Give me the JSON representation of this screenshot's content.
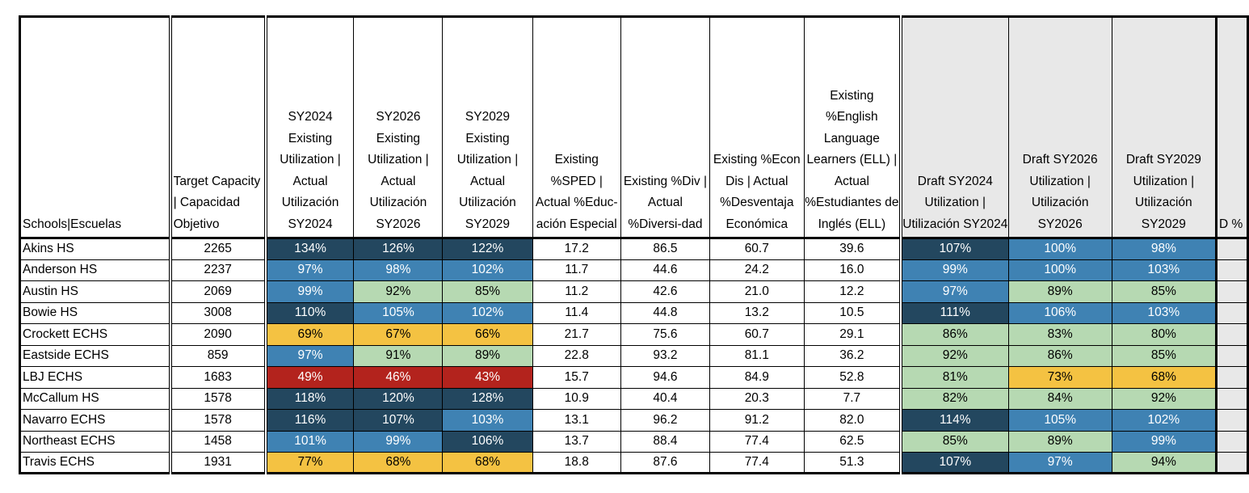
{
  "colors": {
    "dark": "#23475f",
    "blue": "#3f82b3",
    "green": "#b6d9b2",
    "yellow": "#f4c242",
    "red": "#b3231d",
    "draft_header_bg": "#e8e8e8"
  },
  "headers": {
    "school": "Schools|Escuelas",
    "target_capacity": "Target Capacity | Capacidad Objetivo",
    "sy2024_existing": "SY2024 Existing Utilization | Actual Utilización SY2024",
    "sy2026_existing": "SY2026 Existing Utilization | Actual Utilización SY2026",
    "sy2029_existing": "SY2029 Existing Utilization | Actual Utilización SY2029",
    "sped": "Existing %SPED | Actual %Educ-ación Especial",
    "div": "Existing %Div | Actual %Diversi-dad",
    "econ": "Existing %Econ Dis | Actual %Desventaja Económica",
    "ell": "Existing %English Language Learners (ELL) | Actual %Estudiantes de Inglés (ELL)",
    "draft_sy2024": "Draft SY2024 Utilization | Utilización SY2024",
    "draft_sy2026": "Draft SY2026 Utilization | Utilización SY2026",
    "draft_sy2029": "Draft SY2029 Utilization | Utilización SY2029",
    "cut_col": "D %"
  },
  "rows": [
    {
      "school": "Akins HS",
      "capacity": "2265",
      "e24": "134%",
      "e24c": "dark",
      "e26": "126%",
      "e26c": "dark",
      "e29": "122%",
      "e29c": "dark",
      "sped": "17.2",
      "div": "86.5",
      "econ": "60.7",
      "ell": "39.6",
      "d24": "107%",
      "d24c": "dark",
      "d26": "100%",
      "d26c": "blue",
      "d29": "98%",
      "d29c": "blue"
    },
    {
      "school": "Anderson HS",
      "capacity": "2237",
      "e24": "97%",
      "e24c": "blue",
      "e26": "98%",
      "e26c": "blue",
      "e29": "102%",
      "e29c": "blue",
      "sped": "11.7",
      "div": "44.6",
      "econ": "24.2",
      "ell": "16.0",
      "d24": "99%",
      "d24c": "blue",
      "d26": "100%",
      "d26c": "blue",
      "d29": "103%",
      "d29c": "blue"
    },
    {
      "school": "Austin HS",
      "capacity": "2069",
      "e24": "99%",
      "e24c": "blue",
      "e26": "92%",
      "e26c": "green",
      "e29": "85%",
      "e29c": "green",
      "sped": "11.2",
      "div": "42.6",
      "econ": "21.0",
      "ell": "12.2",
      "d24": "97%",
      "d24c": "blue",
      "d26": "89%",
      "d26c": "green",
      "d29": "85%",
      "d29c": "green"
    },
    {
      "school": "Bowie HS",
      "capacity": "3008",
      "e24": "110%",
      "e24c": "dark",
      "e26": "105%",
      "e26c": "blue",
      "e29": "102%",
      "e29c": "blue",
      "sped": "11.4",
      "div": "44.8",
      "econ": "13.2",
      "ell": "10.5",
      "d24": "111%",
      "d24c": "dark",
      "d26": "106%",
      "d26c": "blue",
      "d29": "103%",
      "d29c": "blue"
    },
    {
      "school": "Crockett ECHS",
      "capacity": "2090",
      "e24": "69%",
      "e24c": "yellow",
      "e26": "67%",
      "e26c": "yellow",
      "e29": "66%",
      "e29c": "yellow",
      "sped": "21.7",
      "div": "75.6",
      "econ": "60.7",
      "ell": "29.1",
      "d24": "86%",
      "d24c": "green",
      "d26": "83%",
      "d26c": "green",
      "d29": "80%",
      "d29c": "green"
    },
    {
      "school": "Eastside ECHS",
      "capacity": "859",
      "e24": "97%",
      "e24c": "blue",
      "e26": "91%",
      "e26c": "green",
      "e29": "89%",
      "e29c": "green",
      "sped": "22.8",
      "div": "93.2",
      "econ": "81.1",
      "ell": "36.2",
      "d24": "92%",
      "d24c": "green",
      "d26": "86%",
      "d26c": "green",
      "d29": "85%",
      "d29c": "green"
    },
    {
      "school": "LBJ ECHS",
      "capacity": "1683",
      "e24": "49%",
      "e24c": "red",
      "e26": "46%",
      "e26c": "red",
      "e29": "43%",
      "e29c": "red",
      "sped": "15.7",
      "div": "94.6",
      "econ": "84.9",
      "ell": "52.8",
      "d24": "81%",
      "d24c": "green",
      "d26": "73%",
      "d26c": "yellow",
      "d29": "68%",
      "d29c": "yellow"
    },
    {
      "school": "McCallum HS",
      "capacity": "1578",
      "e24": "118%",
      "e24c": "dark",
      "e26": "120%",
      "e26c": "dark",
      "e29": "128%",
      "e29c": "dark",
      "sped": "10.9",
      "div": "40.4",
      "econ": "20.3",
      "ell": "7.7",
      "d24": "82%",
      "d24c": "green",
      "d26": "84%",
      "d26c": "green",
      "d29": "92%",
      "d29c": "green"
    },
    {
      "school": "Navarro ECHS",
      "capacity": "1578",
      "e24": "116%",
      "e24c": "dark",
      "e26": "107%",
      "e26c": "dark",
      "e29": "103%",
      "e29c": "blue",
      "sped": "13.1",
      "div": "96.2",
      "econ": "91.2",
      "ell": "82.0",
      "d24": "114%",
      "d24c": "dark",
      "d26": "105%",
      "d26c": "blue",
      "d29": "102%",
      "d29c": "blue"
    },
    {
      "school": "Northeast ECHS",
      "capacity": "1458",
      "e24": "101%",
      "e24c": "blue",
      "e26": "99%",
      "e26c": "blue",
      "e29": "106%",
      "e29c": "dark",
      "sped": "13.7",
      "div": "88.4",
      "econ": "77.4",
      "ell": "62.5",
      "d24": "85%",
      "d24c": "green",
      "d26": "89%",
      "d26c": "green",
      "d29": "99%",
      "d29c": "blue"
    },
    {
      "school": "Travis ECHS",
      "capacity": "1931",
      "e24": "77%",
      "e24c": "yellow",
      "e26": "68%",
      "e26c": "yellow",
      "e29": "68%",
      "e29c": "yellow",
      "sped": "18.8",
      "div": "87.6",
      "econ": "77.4",
      "ell": "51.3",
      "d24": "107%",
      "d24c": "dark",
      "d26": "97%",
      "d26c": "blue",
      "d29": "94%",
      "d29c": "green"
    }
  ]
}
